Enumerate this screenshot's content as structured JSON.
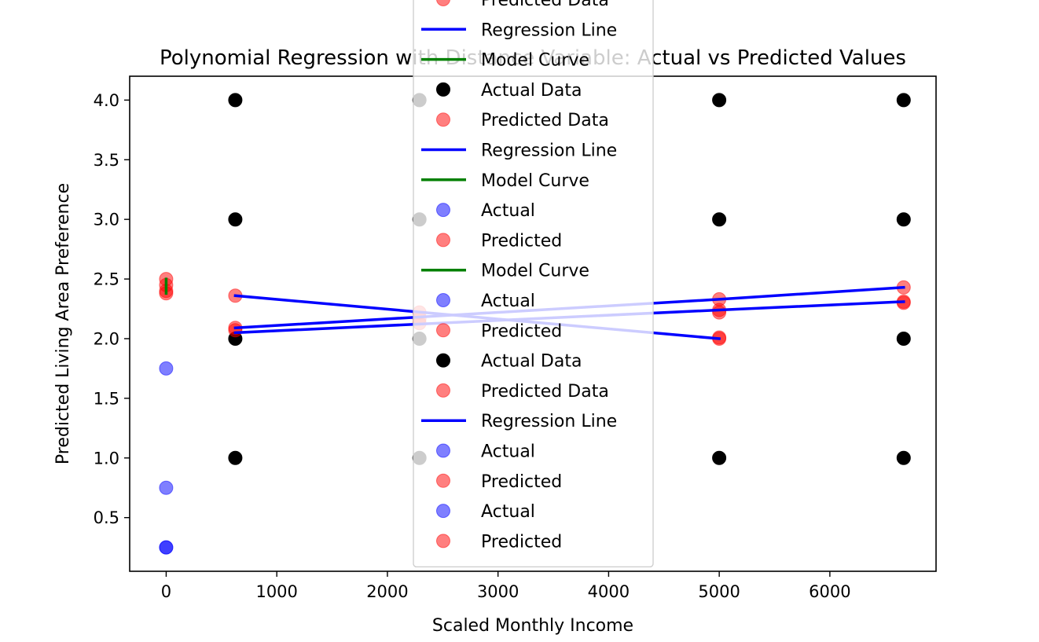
{
  "chart_data": {
    "type": "scatter",
    "title": "Polynomial Regression with Distance Variable: Actual vs Predicted Values",
    "xlabel": "Scaled Monthly Income",
    "ylabel": "Predicted Living Area Preference",
    "xlim": [
      -330,
      6960
    ],
    "ylim": [
      0.05,
      4.2
    ],
    "xticks": [
      0,
      1000,
      2000,
      3000,
      4000,
      5000,
      6000
    ],
    "xtick_labels": [
      "0",
      "1000",
      "2000",
      "3000",
      "4000",
      "5000",
      "6000"
    ],
    "yticks": [
      0.5,
      1.0,
      1.5,
      2.0,
      2.5,
      3.0,
      3.5,
      4.0
    ],
    "ytick_labels": [
      "0.5",
      "1.0",
      "1.5",
      "2.0",
      "2.5",
      "3.0",
      "3.5",
      "4.0"
    ],
    "grid": false,
    "legend_placement": "upper center",
    "colors": {
      "actual_data": "#000000",
      "predicted": "#ff0000",
      "regression_line": "#0000ff",
      "model_curve": "#008000",
      "actual_blue": "#0000ff"
    },
    "series": [
      {
        "name": "Actual Data",
        "kind": "scatter",
        "color": "#000000",
        "opacity": 1.0,
        "points": [
          [
            625,
            4
          ],
          [
            625,
            3
          ],
          [
            625,
            2
          ],
          [
            625,
            1
          ],
          [
            2290,
            4
          ],
          [
            2290,
            3
          ],
          [
            2290,
            2
          ],
          [
            2290,
            1
          ],
          [
            5000,
            4
          ],
          [
            5000,
            3
          ],
          [
            5000,
            1
          ],
          [
            6667,
            4
          ],
          [
            6667,
            3
          ],
          [
            6667,
            2
          ],
          [
            6667,
            1
          ]
        ]
      },
      {
        "name": "Predicted Data",
        "kind": "scatter",
        "color": "#ff0000",
        "opacity": 0.5,
        "points": [
          [
            0,
            2.5
          ],
          [
            0,
            2.45
          ],
          [
            0,
            2.4
          ],
          [
            0,
            2.38
          ],
          [
            625,
            2.36
          ],
          [
            625,
            2.09
          ],
          [
            625,
            2.07
          ],
          [
            2290,
            2.22
          ],
          [
            2290,
            2.17
          ],
          [
            2290,
            2.13
          ],
          [
            5000,
            2.33
          ],
          [
            5000,
            2.24
          ],
          [
            5000,
            2.22
          ],
          [
            5000,
            2.01
          ],
          [
            5000,
            2.0
          ],
          [
            6667,
            2.43
          ],
          [
            6667,
            2.31
          ],
          [
            6667,
            2.3
          ]
        ]
      },
      {
        "name": "Actual",
        "kind": "scatter",
        "color": "#0000ff",
        "opacity": 0.5,
        "points": [
          [
            0,
            1.75
          ],
          [
            0,
            0.75
          ],
          [
            0,
            0.25
          ],
          [
            0,
            0.25
          ]
        ]
      },
      {
        "name": "Regression Line",
        "kind": "line",
        "color": "#0000ff",
        "points": [
          [
            625,
            2.36
          ],
          [
            5000,
            2.0
          ]
        ]
      },
      {
        "name": "Regression Line",
        "kind": "line",
        "color": "#0000ff",
        "points": [
          [
            625,
            2.09
          ],
          [
            5000,
            2.33
          ],
          [
            6667,
            2.43
          ]
        ]
      },
      {
        "name": "Regression Line",
        "kind": "line",
        "color": "#0000ff",
        "points": [
          [
            625,
            2.05
          ],
          [
            5000,
            2.24
          ],
          [
            6667,
            2.31
          ]
        ]
      },
      {
        "name": "Model Curve",
        "kind": "line",
        "color": "#008000",
        "points": [
          [
            0,
            2.38
          ],
          [
            0,
            2.5
          ]
        ]
      }
    ],
    "legend": [
      {
        "label": "Predicted Data",
        "marker": "dot",
        "color": "#ff0000",
        "opacity": 0.5
      },
      {
        "label": "Regression Line",
        "marker": "line",
        "color": "#0000ff"
      },
      {
        "label": "Model Curve",
        "marker": "line",
        "color": "#008000"
      },
      {
        "label": "Actual Data",
        "marker": "dot",
        "color": "#000000",
        "opacity": 1.0
      },
      {
        "label": "Predicted Data",
        "marker": "dot",
        "color": "#ff0000",
        "opacity": 0.5
      },
      {
        "label": "Regression Line",
        "marker": "line",
        "color": "#0000ff"
      },
      {
        "label": "Model Curve",
        "marker": "line",
        "color": "#008000"
      },
      {
        "label": "Actual",
        "marker": "dot",
        "color": "#0000ff",
        "opacity": 0.5
      },
      {
        "label": "Predicted",
        "marker": "dot",
        "color": "#ff0000",
        "opacity": 0.5
      },
      {
        "label": "Model Curve",
        "marker": "line",
        "color": "#008000"
      },
      {
        "label": "Actual",
        "marker": "dot",
        "color": "#0000ff",
        "opacity": 0.5
      },
      {
        "label": "Predicted",
        "marker": "dot",
        "color": "#ff0000",
        "opacity": 0.5
      },
      {
        "label": "Actual Data",
        "marker": "dot",
        "color": "#000000",
        "opacity": 1.0
      },
      {
        "label": "Predicted Data",
        "marker": "dot",
        "color": "#ff0000",
        "opacity": 0.5
      },
      {
        "label": "Regression Line",
        "marker": "line",
        "color": "#0000ff"
      },
      {
        "label": "Actual",
        "marker": "dot",
        "color": "#0000ff",
        "opacity": 0.5
      },
      {
        "label": "Predicted",
        "marker": "dot",
        "color": "#ff0000",
        "opacity": 0.5
      },
      {
        "label": "Actual",
        "marker": "dot",
        "color": "#0000ff",
        "opacity": 0.5
      },
      {
        "label": "Predicted",
        "marker": "dot",
        "color": "#ff0000",
        "opacity": 0.5
      }
    ]
  }
}
